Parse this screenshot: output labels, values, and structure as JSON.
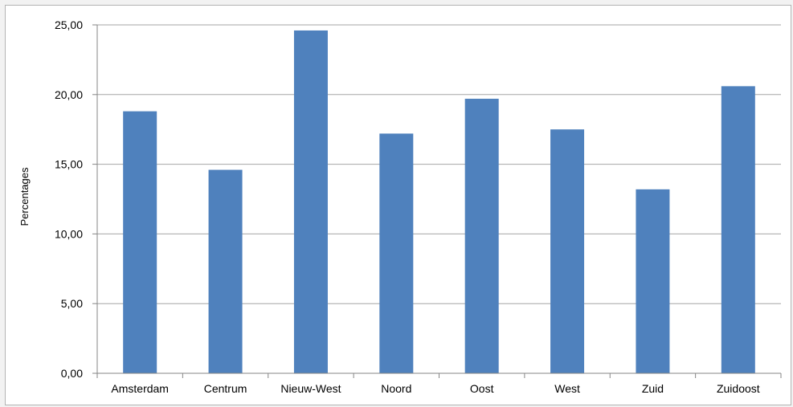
{
  "chart_data": {
    "type": "bar",
    "categories": [
      "Amsterdam",
      "Centrum",
      "Nieuw-West",
      "Noord",
      "Oost",
      "West",
      "Zuid",
      "Zuidoost"
    ],
    "values": [
      18.8,
      14.6,
      24.6,
      17.2,
      19.7,
      17.5,
      13.2,
      20.6
    ],
    "title": "",
    "xlabel": "",
    "ylabel": "Percentages",
    "ylim": [
      0,
      25
    ],
    "yticks": [
      "0,00",
      "5,00",
      "10,00",
      "15,00",
      "20,00",
      "25,00"
    ],
    "grid": true,
    "legend": "none",
    "bar_color": "#4f81bd",
    "grid_color": "#a6a6a6"
  }
}
